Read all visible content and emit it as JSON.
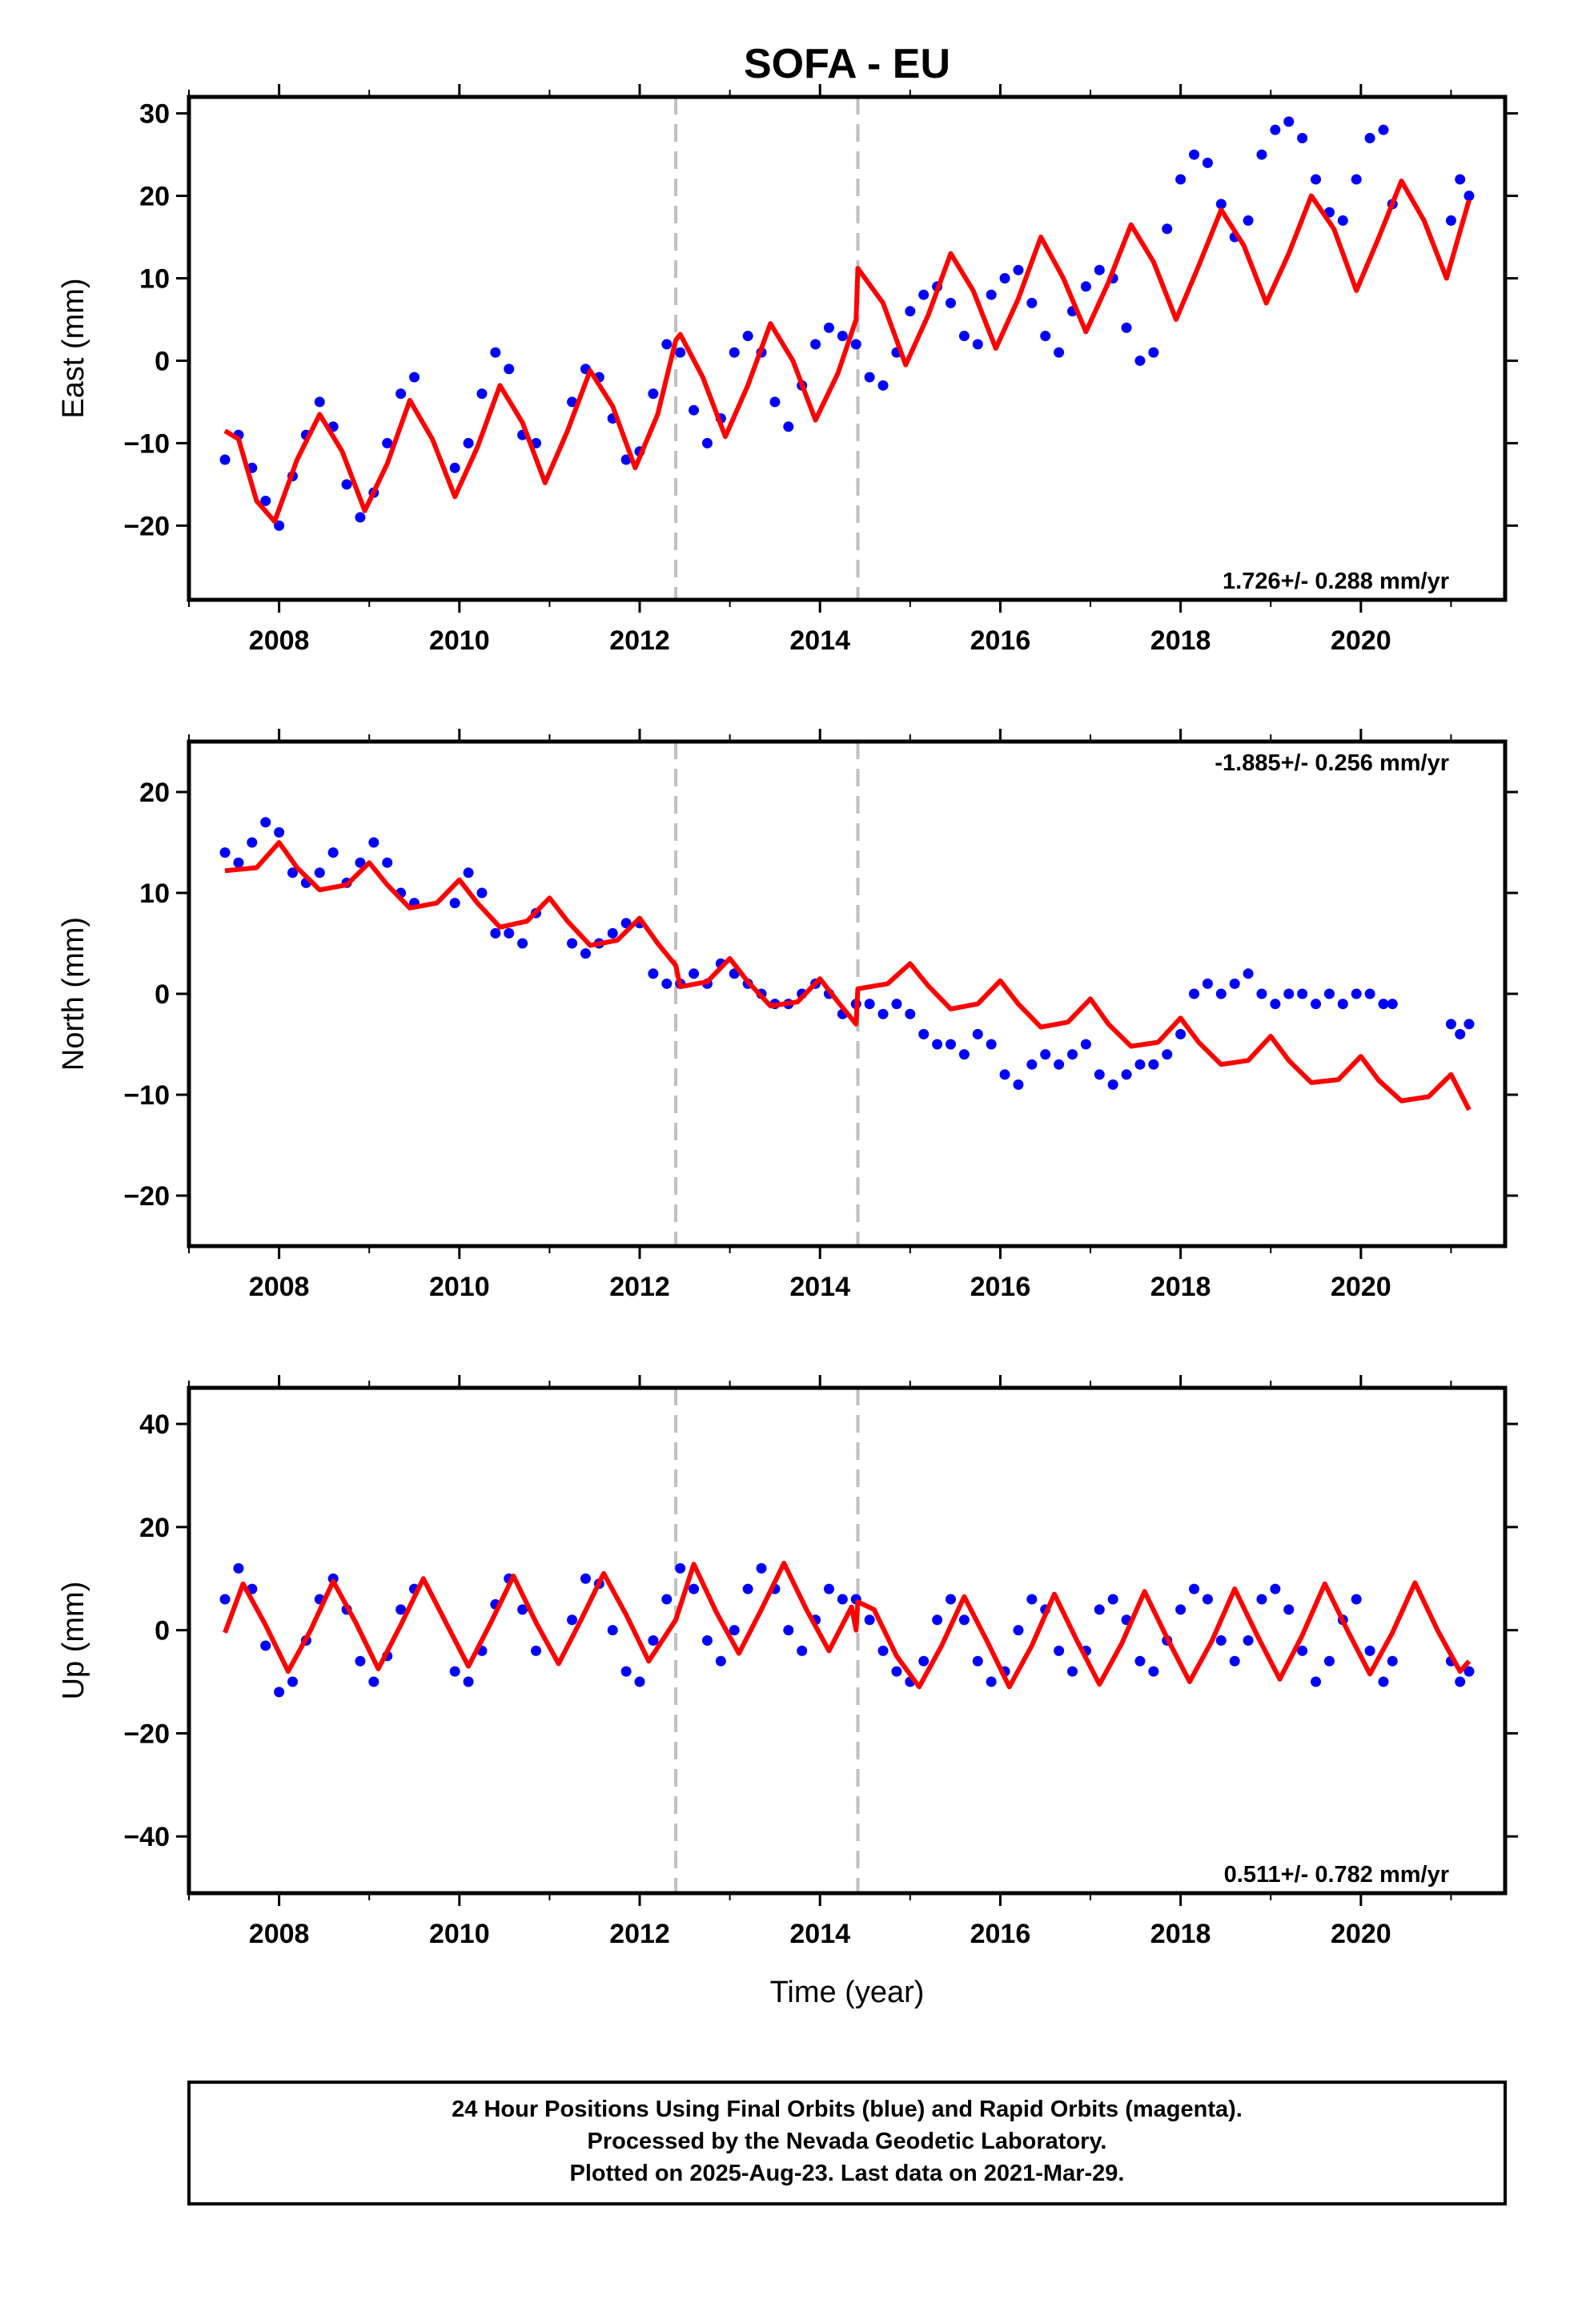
{
  "title": "SOFA - EU",
  "xlabel": "Time (year)",
  "footer": {
    "line1": "24 Hour Positions Using Final Orbits (blue) and Rapid Orbits (magenta).",
    "line2": "Processed by the Nevada Geodetic Laboratory.",
    "line3": "Plotted on 2025-Aug-23. Last data on 2021-Mar-29."
  },
  "colors": {
    "data": "#0000ff",
    "model": "#ff0000",
    "event_line": "#c0c0c0"
  },
  "chart_data": [
    {
      "type": "scatter",
      "panel": "east",
      "ylabel": "East (mm)",
      "xlim": [
        2007.0,
        2021.6
      ],
      "ylim": [
        -29,
        32
      ],
      "yticks": [
        -20,
        -10,
        0,
        10,
        20,
        30
      ],
      "xticks": [
        2008,
        2010,
        2012,
        2014,
        2016,
        2018,
        2020
      ],
      "grid": false,
      "event_lines": [
        2012.4,
        2014.42
      ],
      "rate_label": "1.726+/- 0.288 mm/yr",
      "rate_position": "bottom-right",
      "series": [
        {
          "style": "points",
          "x": [
            2007.4,
            2007.55,
            2007.7,
            2007.85,
            2008.0,
            2008.15,
            2008.3,
            2008.45,
            2008.6,
            2008.75,
            2008.9,
            2009.05,
            2009.2,
            2009.35,
            2009.5,
            2009.95,
            2010.1,
            2010.25,
            2010.4,
            2010.55,
            2010.7,
            2010.85,
            2011.25,
            2011.4,
            2011.55,
            2011.7,
            2011.85,
            2012.0,
            2012.15,
            2012.3,
            2012.45,
            2012.6,
            2012.75,
            2012.9,
            2013.05,
            2013.2,
            2013.35,
            2013.5,
            2013.65,
            2013.8,
            2013.95,
            2014.1,
            2014.25,
            2014.4,
            2014.55,
            2014.7,
            2014.85,
            2015.0,
            2015.15,
            2015.3,
            2015.45,
            2015.6,
            2015.75,
            2015.9,
            2016.05,
            2016.2,
            2016.35,
            2016.5,
            2016.65,
            2016.8,
            2016.95,
            2017.1,
            2017.25,
            2017.4,
            2017.55,
            2017.7,
            2017.85,
            2018.0,
            2018.15,
            2018.3,
            2018.45,
            2018.6,
            2018.75,
            2018.9,
            2019.05,
            2019.2,
            2019.35,
            2019.5,
            2019.65,
            2019.8,
            2019.95,
            2020.1,
            2020.25,
            2020.35,
            2021.0,
            2021.1,
            2021.2
          ],
          "y": [
            -12,
            -9,
            -13,
            -17,
            -20,
            -14,
            -9,
            -5,
            -8,
            -15,
            -19,
            -16,
            -10,
            -4,
            -2,
            -13,
            -10,
            -4,
            1,
            -1,
            -9,
            -10,
            -5,
            -1,
            -2,
            -7,
            -12,
            -11,
            -4,
            2,
            1,
            -6,
            -10,
            -7,
            1,
            3,
            1,
            -5,
            -8,
            -3,
            2,
            4,
            3,
            2,
            -2,
            -3,
            1,
            6,
            8,
            9,
            7,
            3,
            2,
            8,
            10,
            11,
            7,
            3,
            1,
            6,
            9,
            11,
            10,
            4,
            0,
            1,
            16,
            22,
            25,
            24,
            19,
            15,
            17,
            25,
            28,
            29,
            27,
            22,
            18,
            17,
            22,
            27,
            28,
            19,
            17,
            22,
            20
          ]
        },
        {
          "style": "line",
          "x": [
            2007.4,
            2007.55,
            2007.75,
            2007.95,
            2008.2,
            2008.45,
            2008.7,
            2008.95,
            2009.2,
            2009.45,
            2009.7,
            2009.95,
            2010.2,
            2010.45,
            2010.7,
            2010.95,
            2011.2,
            2011.45,
            2011.7,
            2011.95,
            2012.2,
            2012.4,
            2012.45,
            2012.7,
            2012.95,
            2013.2,
            2013.45,
            2013.7,
            2013.95,
            2014.2,
            2014.4,
            2014.42,
            2014.7,
            2014.95,
            2015.2,
            2015.45,
            2015.7,
            2015.95,
            2016.2,
            2016.45,
            2016.7,
            2016.95,
            2017.2,
            2017.45,
            2017.7,
            2017.95,
            2018.2,
            2018.45,
            2018.7,
            2018.95,
            2019.2,
            2019.45,
            2019.7,
            2019.95,
            2020.2,
            2020.45,
            2020.7,
            2020.95,
            2021.2
          ],
          "y": [
            -8.5,
            -9.5,
            -17,
            -19.5,
            -12,
            -6.5,
            -11,
            -18.2,
            -12.5,
            -4.8,
            -9.5,
            -16.5,
            -10.5,
            -3,
            -7.5,
            -14.8,
            -8.5,
            -1.2,
            -5.5,
            -13,
            -6.5,
            2.5,
            3.2,
            -2,
            -9.2,
            -3,
            4.5,
            0,
            -7.2,
            -1.5,
            5,
            11.2,
            7,
            -0.5,
            5.5,
            13,
            8.5,
            1.5,
            7.5,
            15,
            10,
            3.5,
            9.5,
            16.5,
            12,
            5,
            11.5,
            18.3,
            14,
            7,
            13,
            20,
            16,
            8.5,
            15,
            21.8,
            17,
            10,
            19.5
          ]
        }
      ]
    },
    {
      "type": "scatter",
      "panel": "north",
      "ylabel": "North (mm)",
      "xlim": [
        2007.0,
        2021.6
      ],
      "ylim": [
        -25,
        25
      ],
      "yticks": [
        -20,
        -10,
        0,
        10,
        20
      ],
      "xticks": [
        2008,
        2010,
        2012,
        2014,
        2016,
        2018,
        2020
      ],
      "grid": false,
      "event_lines": [
        2012.4,
        2014.42
      ],
      "rate_label": "-1.885+/- 0.256 mm/yr",
      "rate_position": "top-right",
      "series": [
        {
          "style": "points",
          "x": [
            2007.4,
            2007.55,
            2007.7,
            2007.85,
            2008.0,
            2008.15,
            2008.3,
            2008.45,
            2008.6,
            2008.75,
            2008.9,
            2009.05,
            2009.2,
            2009.35,
            2009.5,
            2009.95,
            2010.1,
            2010.25,
            2010.4,
            2010.55,
            2010.7,
            2010.85,
            2011.25,
            2011.4,
            2011.55,
            2011.7,
            2011.85,
            2012.0,
            2012.15,
            2012.3,
            2012.45,
            2012.6,
            2012.75,
            2012.9,
            2013.05,
            2013.2,
            2013.35,
            2013.5,
            2013.65,
            2013.8,
            2013.95,
            2014.1,
            2014.25,
            2014.4,
            2014.55,
            2014.7,
            2014.85,
            2015.0,
            2015.15,
            2015.3,
            2015.45,
            2015.6,
            2015.75,
            2015.9,
            2016.05,
            2016.2,
            2016.35,
            2016.5,
            2016.65,
            2016.8,
            2016.95,
            2017.1,
            2017.25,
            2017.4,
            2017.55,
            2017.7,
            2017.85,
            2018.0,
            2018.15,
            2018.3,
            2018.45,
            2018.6,
            2018.75,
            2018.9,
            2019.05,
            2019.2,
            2019.35,
            2019.5,
            2019.65,
            2019.8,
            2019.95,
            2020.1,
            2020.25,
            2020.35,
            2021.0,
            2021.1,
            2021.2
          ],
          "y": [
            14,
            13,
            15,
            17,
            16,
            12,
            11,
            12,
            14,
            11,
            13,
            15,
            13,
            10,
            9,
            9,
            12,
            10,
            6,
            6,
            5,
            8,
            5,
            4,
            5,
            6,
            7,
            7,
            2,
            1,
            1,
            2,
            1,
            3,
            2,
            1,
            0,
            -1,
            -1,
            0,
            1,
            0,
            -2,
            -1,
            -1,
            -2,
            -1,
            -2,
            -4,
            -5,
            -5,
            -6,
            -4,
            -5,
            -8,
            -9,
            -7,
            -6,
            -7,
            -6,
            -5,
            -8,
            -9,
            -8,
            -7,
            -7,
            -6,
            -4,
            0,
            1,
            0,
            1,
            2,
            0,
            -1,
            0,
            0,
            -1,
            0,
            -1,
            0,
            0,
            -1,
            -1,
            -3,
            -4,
            -3
          ]
        },
        {
          "style": "line",
          "x": [
            2007.4,
            2007.75,
            2008.0,
            2008.2,
            2008.45,
            2008.75,
            2009.0,
            2009.2,
            2009.45,
            2009.75,
            2010.0,
            2010.2,
            2010.45,
            2010.75,
            2011.0,
            2011.2,
            2011.45,
            2011.75,
            2012.0,
            2012.2,
            2012.4,
            2012.45,
            2012.75,
            2013.0,
            2013.2,
            2013.45,
            2013.75,
            2014.0,
            2014.2,
            2014.4,
            2014.42,
            2014.75,
            2015.0,
            2015.2,
            2015.45,
            2015.75,
            2016.0,
            2016.2,
            2016.45,
            2016.75,
            2017.0,
            2017.2,
            2017.45,
            2017.75,
            2018.0,
            2018.2,
            2018.45,
            2018.75,
            2019.0,
            2019.2,
            2019.45,
            2019.75,
            2020.0,
            2020.2,
            2020.45,
            2020.75,
            2021.0,
            2021.2
          ],
          "y": [
            12.2,
            12.5,
            15,
            12.5,
            10.3,
            10.8,
            13,
            10.8,
            8.5,
            9,
            11.3,
            9,
            6.6,
            7.2,
            9.5,
            7.2,
            4.8,
            5.3,
            7.5,
            5,
            2.8,
            0.7,
            1.2,
            3.5,
            1.2,
            -1.2,
            -0.8,
            1.5,
            -0.8,
            -3,
            0.5,
            1,
            3,
            0.8,
            -1.5,
            -1,
            1.3,
            -1,
            -3.3,
            -2.8,
            -0.5,
            -3,
            -5.2,
            -4.8,
            -2.4,
            -4.8,
            -7,
            -6.6,
            -4.2,
            -6.6,
            -8.8,
            -8.5,
            -6.2,
            -8.6,
            -10.6,
            -10.2,
            -8,
            -11.5
          ]
        }
      ]
    },
    {
      "type": "scatter",
      "panel": "up",
      "ylabel": "Up (mm)",
      "xlim": [
        2007.0,
        2021.6
      ],
      "ylim": [
        -51,
        47
      ],
      "yticks": [
        -40,
        -20,
        0,
        20,
        40
      ],
      "xticks": [
        2008,
        2010,
        2012,
        2014,
        2016,
        2018,
        2020
      ],
      "grid": false,
      "event_lines": [
        2012.4,
        2014.42
      ],
      "rate_label": "0.511+/- 0.782 mm/yr",
      "rate_position": "bottom-right",
      "series": [
        {
          "style": "points",
          "x": [
            2007.4,
            2007.55,
            2007.7,
            2007.85,
            2008.0,
            2008.15,
            2008.3,
            2008.45,
            2008.6,
            2008.75,
            2008.9,
            2009.05,
            2009.2,
            2009.35,
            2009.5,
            2009.95,
            2010.1,
            2010.25,
            2010.4,
            2010.55,
            2010.7,
            2010.85,
            2011.25,
            2011.4,
            2011.55,
            2011.7,
            2011.85,
            2012.0,
            2012.15,
            2012.3,
            2012.45,
            2012.6,
            2012.75,
            2012.9,
            2013.05,
            2013.2,
            2013.35,
            2013.5,
            2013.65,
            2013.8,
            2013.95,
            2014.1,
            2014.25,
            2014.4,
            2014.55,
            2014.7,
            2014.85,
            2015.0,
            2015.15,
            2015.3,
            2015.45,
            2015.6,
            2015.75,
            2015.9,
            2016.05,
            2016.2,
            2016.35,
            2016.5,
            2016.65,
            2016.8,
            2016.95,
            2017.1,
            2017.25,
            2017.4,
            2017.55,
            2017.7,
            2017.85,
            2018.0,
            2018.15,
            2018.3,
            2018.45,
            2018.6,
            2018.75,
            2018.9,
            2019.05,
            2019.2,
            2019.35,
            2019.5,
            2019.65,
            2019.8,
            2019.95,
            2020.1,
            2020.25,
            2020.35,
            2021.0,
            2021.1,
            2021.2
          ],
          "y": [
            6,
            12,
            8,
            -3,
            -12,
            -10,
            -2,
            6,
            10,
            4,
            -6,
            -10,
            -5,
            4,
            8,
            -8,
            -10,
            -4,
            5,
            10,
            4,
            -4,
            2,
            10,
            9,
            0,
            -8,
            -10,
            -2,
            6,
            12,
            8,
            -2,
            -6,
            0,
            8,
            12,
            8,
            0,
            -4,
            2,
            8,
            6,
            6,
            2,
            -4,
            -8,
            -10,
            -6,
            2,
            6,
            2,
            -6,
            -10,
            -8,
            0,
            6,
            4,
            -4,
            -8,
            -4,
            4,
            6,
            2,
            -6,
            -8,
            -2,
            4,
            8,
            6,
            -2,
            -6,
            -2,
            6,
            8,
            4,
            -4,
            -10,
            -6,
            2,
            6,
            -4,
            -10,
            -6,
            -6,
            -10,
            -8
          ]
        },
        {
          "style": "line",
          "x": [
            2007.4,
            2007.6,
            2007.85,
            2008.1,
            2008.35,
            2008.6,
            2008.85,
            2009.1,
            2009.35,
            2009.6,
            2009.85,
            2010.1,
            2010.35,
            2010.6,
            2010.85,
            2011.1,
            2011.35,
            2011.6,
            2011.85,
            2012.1,
            2012.4,
            2012.6,
            2012.85,
            2013.1,
            2013.35,
            2013.6,
            2013.85,
            2014.1,
            2014.35,
            2014.4,
            2014.42,
            2014.6,
            2014.85,
            2015.1,
            2015.35,
            2015.6,
            2015.85,
            2016.1,
            2016.35,
            2016.6,
            2016.85,
            2017.1,
            2017.35,
            2017.6,
            2017.85,
            2018.1,
            2018.35,
            2018.6,
            2018.85,
            2019.1,
            2019.35,
            2019.6,
            2019.85,
            2020.1,
            2020.35,
            2020.6,
            2020.85,
            2021.1,
            2021.2
          ],
          "y": [
            -0.5,
            9,
            1,
            -8,
            0,
            9.5,
            1.5,
            -7.5,
            1,
            10,
            1.5,
            -7,
            1.5,
            10.5,
            1.5,
            -6.5,
            2,
            11,
            3,
            -6,
            2,
            12.8,
            3.5,
            -4.5,
            4,
            13,
            4,
            -4,
            4.5,
            0,
            5.5,
            4,
            -5,
            -11,
            -3,
            6.5,
            -2,
            -11,
            -3,
            7,
            -2,
            -10.5,
            -2.5,
            7.5,
            -1.5,
            -10,
            -2,
            8,
            -1,
            -9.5,
            -1,
            9,
            0,
            -8.5,
            -0.5,
            9.2,
            0,
            -8,
            -6
          ]
        }
      ]
    }
  ]
}
